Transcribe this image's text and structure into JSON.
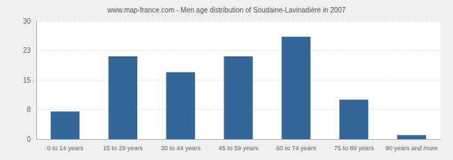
{
  "chart_data": {
    "type": "bar",
    "title": "www.map-france.com - Men age distribution of Soudaine-Lavinadière in 2007",
    "categories": [
      "0 to 14 years",
      "15 to 29 years",
      "30 to 44 years",
      "45 to 59 years",
      "60 to 74 years",
      "75 to 89 years",
      "90 years and more"
    ],
    "values": [
      7,
      21,
      17,
      21,
      26,
      10,
      1
    ],
    "color": "#336699",
    "ylim": [
      0,
      30
    ],
    "yticks": [
      0,
      {
        "value": 7.5,
        "label": "8"
      },
      15,
      {
        "value": 22.5,
        "label": "23"
      },
      30
    ],
    "grid": true
  }
}
